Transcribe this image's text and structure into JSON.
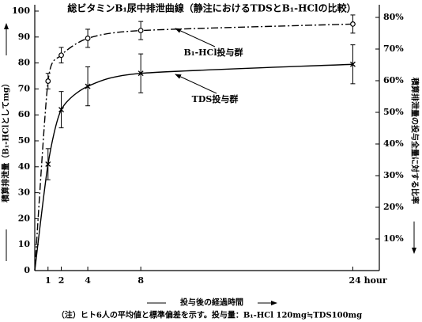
{
  "chart_data": {
    "type": "line",
    "title": "総ビタミンB₁尿中排泄曲線（静注におけるTDSとB₁-HClの比較）",
    "x_label": "投与後の経過時間",
    "y_label": "積算排泄量（B₁-HClとしてmg）",
    "y2_label": "積算排泄量の投与全量に対する比率",
    "note": "（注）ヒト6人の平均値と標準偏差を示す。投与量：B₁-HCl 120mg≒TDS100mg",
    "x": [
      0,
      1,
      2,
      4,
      8,
      24
    ],
    "xlim": [
      0,
      26
    ],
    "xticks": [
      1,
      2,
      4,
      8,
      {
        "value": 24,
        "label": "24 hour"
      }
    ],
    "ylim": [
      0,
      100
    ],
    "yticks": [
      0,
      10,
      20,
      30,
      40,
      50,
      60,
      70,
      80,
      90,
      100
    ],
    "y2lim": [
      0,
      82
    ],
    "y2ticks": [
      {
        "value": 10,
        "label": "10%"
      },
      {
        "value": 20,
        "label": "20%"
      },
      {
        "value": 30,
        "label": "30%"
      },
      {
        "value": 40,
        "label": "40%"
      },
      {
        "value": 50,
        "label": "50%"
      },
      {
        "value": 60,
        "label": "60%"
      },
      {
        "value": 70,
        "label": "70%"
      },
      {
        "value": 80,
        "label": "80%"
      }
    ],
    "series": [
      {
        "name": "B₁-HCl投与群",
        "color": "#000000",
        "dash": "dashdot",
        "marker": "circle",
        "values": [
          0,
          73,
          83,
          89.5,
          92.5,
          95
        ],
        "errors": [
          null,
          3,
          3,
          3.5,
          3.5,
          3.5
        ]
      },
      {
        "name": "TDS投与群",
        "color": "#000000",
        "dash": "solid",
        "marker": "x",
        "values": [
          0,
          41,
          62,
          71,
          76,
          79.5
        ],
        "errors": [
          null,
          6,
          7,
          7.5,
          7.5,
          7.5
        ]
      }
    ]
  }
}
